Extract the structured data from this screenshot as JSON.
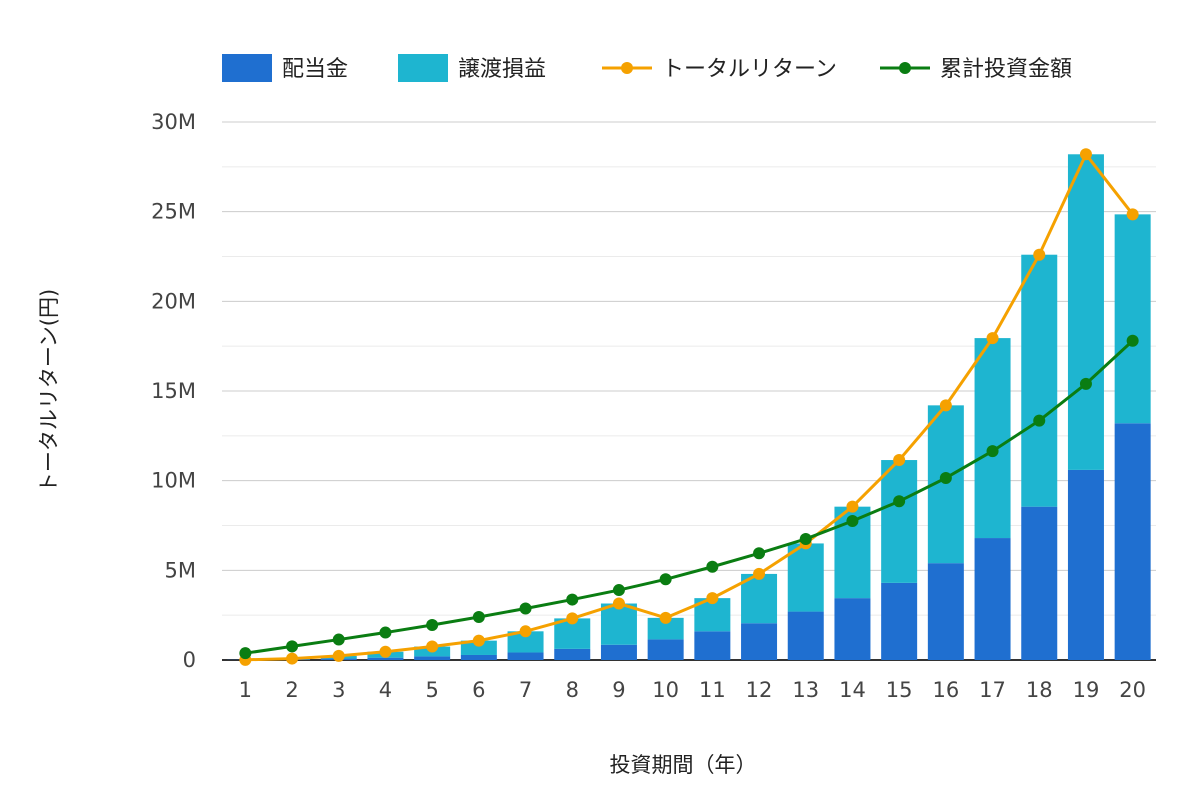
{
  "chart_data": {
    "type": "bar",
    "title": "",
    "xlabel": "投資期間（年）",
    "ylabel": "トータルリターン(円)",
    "ylim": [
      0,
      30000000
    ],
    "y_ticks": [
      {
        "value": 0,
        "label": "0"
      },
      {
        "value": 5000000,
        "label": "5M"
      },
      {
        "value": 10000000,
        "label": "10M"
      },
      {
        "value": 15000000,
        "label": "15M"
      },
      {
        "value": 20000000,
        "label": "20M"
      },
      {
        "value": 25000000,
        "label": "25M"
      },
      {
        "value": 30000000,
        "label": "30M"
      }
    ],
    "categories": [
      "1",
      "2",
      "3",
      "4",
      "5",
      "6",
      "7",
      "8",
      "9",
      "10",
      "11",
      "12",
      "13",
      "14",
      "15",
      "16",
      "17",
      "18",
      "19",
      "20"
    ],
    "legend_position": "top",
    "series": [
      {
        "name": "配当金",
        "kind": "stacked-bar",
        "color": "#1f6fd0",
        "values": [
          10000,
          40000,
          80000,
          130000,
          200000,
          280000,
          420000,
          620000,
          850000,
          1150000,
          1600000,
          2050000,
          2700000,
          3450000,
          4300000,
          5400000,
          6800000,
          8550000,
          10600000,
          13200000
        ]
      },
      {
        "name": "譲渡損益",
        "kind": "stacked-bar",
        "color": "#1eb5d0",
        "values": [
          0,
          40000,
          150000,
          330000,
          550000,
          800000,
          1180000,
          1700000,
          2300000,
          1200000,
          1850000,
          2750000,
          3800000,
          5100000,
          6850000,
          8800000,
          11150000,
          14050000,
          17600000,
          11650000
        ]
      },
      {
        "name": "トータルリターン",
        "kind": "line",
        "color": "#f5a100",
        "values": [
          10000,
          80000,
          230000,
          460000,
          750000,
          1080000,
          1600000,
          2320000,
          3150000,
          2350000,
          3450000,
          4800000,
          6500000,
          8550000,
          11150000,
          14200000,
          17950000,
          22600000,
          28200000,
          24850000
        ]
      },
      {
        "name": "累計投資金額",
        "kind": "line",
        "color": "#0a7d12",
        "values": [
          380000,
          760000,
          1140000,
          1530000,
          1950000,
          2400000,
          2870000,
          3370000,
          3900000,
          4500000,
          5200000,
          5950000,
          6750000,
          7750000,
          8850000,
          10150000,
          11650000,
          13350000,
          15400000,
          17800000
        ]
      }
    ],
    "colors": {
      "gridline": "#cccccc",
      "minor_gridline": "#ebebeb",
      "baseline": "#333333"
    }
  }
}
